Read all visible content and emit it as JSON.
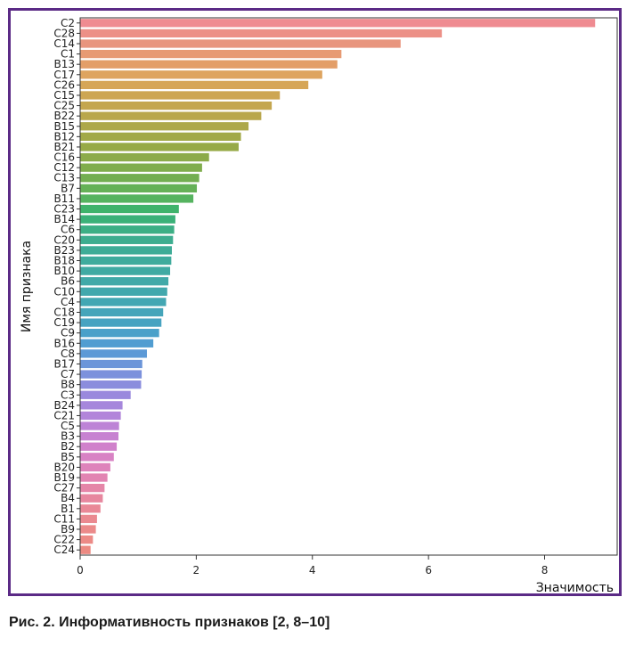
{
  "caption": "Рис. 2. Информативность признаков [2, 8–10]",
  "chart_data": {
    "type": "bar",
    "orientation": "horizontal",
    "xlabel": "Значимость",
    "ylabel": "Имя признака",
    "xlim": [
      0,
      9.25
    ],
    "xticks": [
      0,
      2,
      4,
      6,
      8
    ],
    "grid": false,
    "categories": [
      "C2",
      "C28",
      "C14",
      "C1",
      "B13",
      "C17",
      "C26",
      "C15",
      "C25",
      "B22",
      "B15",
      "B12",
      "B21",
      "C16",
      "C12",
      "C13",
      "B7",
      "B11",
      "C23",
      "B14",
      "C6",
      "C20",
      "B23",
      "B18",
      "B10",
      "B6",
      "C10",
      "C4",
      "C18",
      "C19",
      "C9",
      "B16",
      "C8",
      "B17",
      "C7",
      "B8",
      "C3",
      "B24",
      "C21",
      "C5",
      "B3",
      "B2",
      "B5",
      "B20",
      "B19",
      "C27",
      "B4",
      "B1",
      "C11",
      "B9",
      "C22",
      "C24"
    ],
    "values": [
      8.87,
      6.23,
      5.52,
      4.5,
      4.43,
      4.17,
      3.93,
      3.44,
      3.3,
      3.12,
      2.9,
      2.77,
      2.73,
      2.22,
      2.1,
      2.05,
      2.01,
      1.95,
      1.7,
      1.64,
      1.62,
      1.6,
      1.58,
      1.57,
      1.55,
      1.52,
      1.5,
      1.48,
      1.43,
      1.4,
      1.36,
      1.26,
      1.15,
      1.07,
      1.06,
      1.05,
      0.87,
      0.73,
      0.7,
      0.67,
      0.66,
      0.63,
      0.58,
      0.52,
      0.47,
      0.42,
      0.39,
      0.35,
      0.29,
      0.27,
      0.22,
      0.18
    ],
    "colors": [
      "#ef8b91",
      "#ec9087",
      "#e8957e",
      "#e79a73",
      "#e39e68",
      "#dea45f",
      "#d6a657",
      "#cda653",
      "#c4a64f",
      "#b9a74c",
      "#ada84a",
      "#a2a948",
      "#97aa47",
      "#8cab49",
      "#80ad4c",
      "#73ae51",
      "#65b157",
      "#55b35f",
      "#3fb36b",
      "#3bb178",
      "#3caf85",
      "#3dad8f",
      "#3eac97",
      "#3fab9d",
      "#40aaa3",
      "#41a9a8",
      "#42a8ad",
      "#43a7b3",
      "#45a5ba",
      "#47a3c1",
      "#4aa0c9",
      "#519dd1",
      "#5c99d6",
      "#6b95d9",
      "#7c91dc",
      "#8b8ddd",
      "#9a89dd",
      "#a687dc",
      "#b285da",
      "#bd83d6",
      "#c782d1",
      "#d081cb",
      "#d882c4",
      "#de83bb",
      "#e284b2",
      "#e586a8",
      "#e7879f",
      "#e98897",
      "#ea8990",
      "#eb8a8a",
      "#ec8a86",
      "#ec8a82"
    ]
  }
}
